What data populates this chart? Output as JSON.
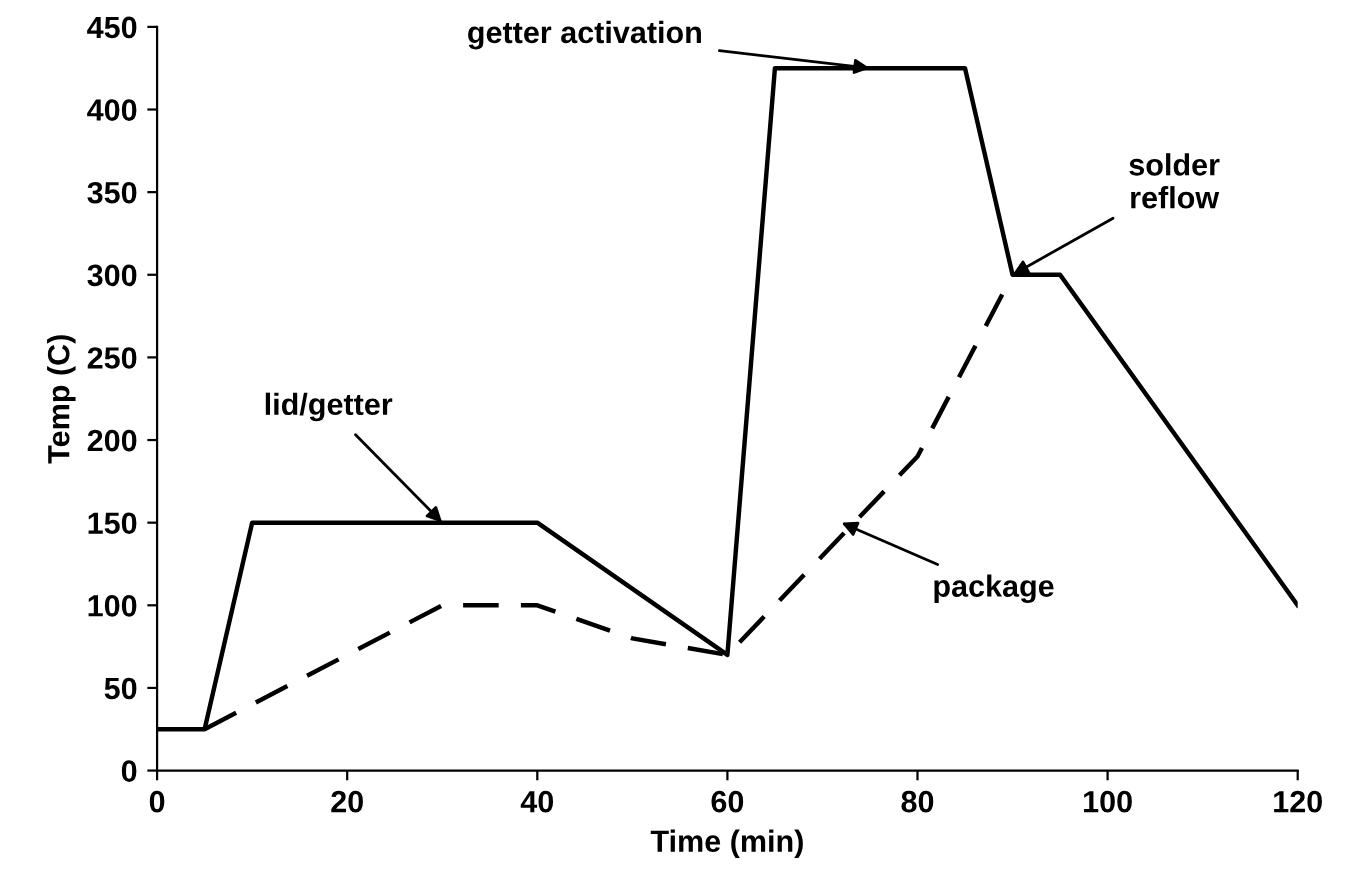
{
  "chart_data": {
    "type": "line",
    "xlabel": "Time (min)",
    "ylabel": "Temp (C)",
    "xlim": [
      0,
      120
    ],
    "xticks": [
      0,
      20,
      40,
      60,
      80,
      100,
      120
    ],
    "ylim": [
      0,
      450
    ],
    "yticks": [
      0,
      50,
      100,
      150,
      200,
      250,
      300,
      350,
      400,
      450
    ],
    "grid": false,
    "legend": false,
    "marker": "none",
    "series": [
      {
        "color": "#000000",
        "line_style": "solid",
        "x": [
          0,
          5,
          10,
          40,
          60,
          65,
          85,
          90,
          95,
          120
        ],
        "values": [
          25,
          25,
          150,
          150,
          70,
          425,
          425,
          300,
          300,
          100
        ]
      },
      {
        "color": "#000000",
        "line_style": "dashed",
        "x": [
          5,
          30,
          40,
          50,
          60,
          80,
          90
        ],
        "values": [
          25,
          100,
          100,
          80,
          70,
          190,
          300
        ]
      }
    ],
    "annotations": [
      {
        "text": "lid/getter",
        "x": 30,
        "y": 150
      },
      {
        "text": "getter activation",
        "x": 75,
        "y": 425
      },
      {
        "text": "solder reflow",
        "x": 90,
        "y": 300
      },
      {
        "text": "package",
        "x": 72,
        "y": 150
      }
    ]
  }
}
